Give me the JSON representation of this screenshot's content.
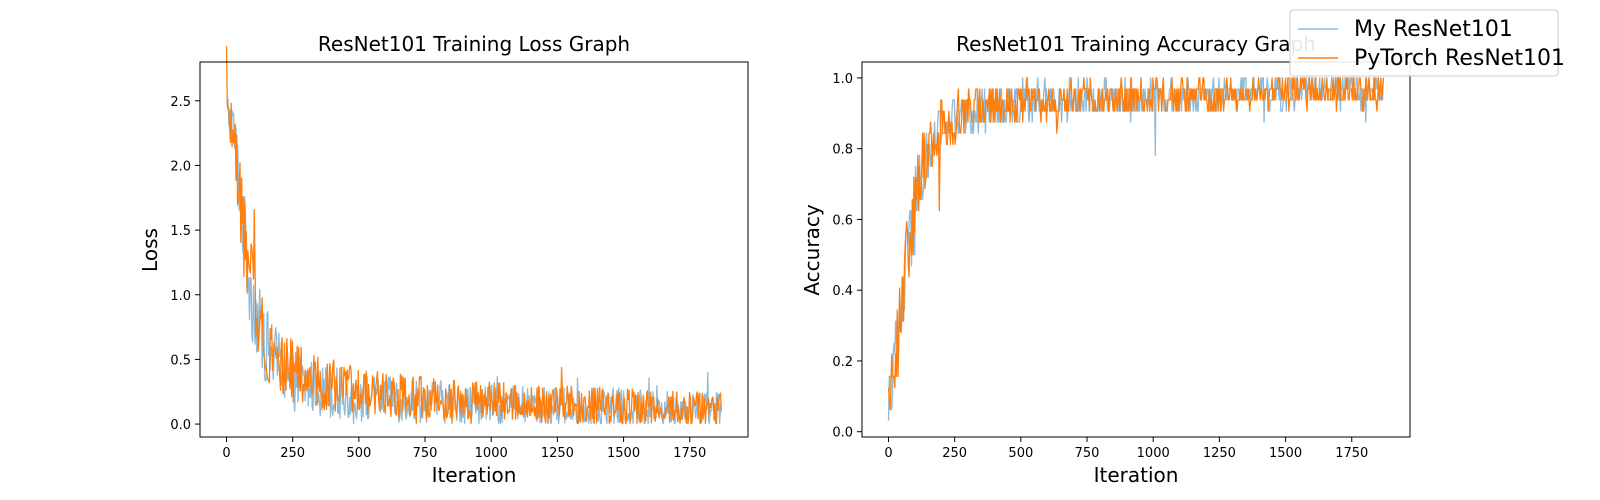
{
  "legend": {
    "placement": "top-right (figure)",
    "entries": [
      {
        "label": "My ResNet101",
        "color": "#1f77b4"
      },
      {
        "label": "PyTorch ResNet101",
        "color": "#ff7f0e"
      }
    ]
  },
  "chart_data": [
    {
      "type": "line",
      "title": "ResNet101 Training Loss Graph",
      "xlabel": "Iteration",
      "ylabel": "Loss",
      "xlim": [
        -100,
        1970
      ],
      "ylim": [
        -0.1,
        2.8
      ],
      "xticks": [
        0,
        250,
        500,
        750,
        1000,
        1250,
        1500,
        1750
      ],
      "xtick_labels": [
        "0",
        "250",
        "500",
        "750",
        "1000",
        "1250",
        "1500",
        "1750"
      ],
      "yticks": [
        0.0,
        0.5,
        1.0,
        1.5,
        2.0,
        2.5
      ],
      "ytick_labels": [
        "0.0",
        "0.5",
        "1.0",
        "1.5",
        "2.0",
        "2.5"
      ],
      "grid": false,
      "series": [
        {
          "name": "My ResNet101",
          "color": "#1f77b4",
          "opacity": 0.5,
          "x": [
            0,
            25,
            50,
            75,
            100,
            125,
            150,
            200,
            250,
            300,
            400,
            500,
            750,
            1000,
            1250,
            1500,
            1750,
            1870
          ],
          "y_mean": [
            2.45,
            2.3,
            1.85,
            1.3,
            0.95,
            0.75,
            0.6,
            0.45,
            0.35,
            0.3,
            0.25,
            0.2,
            0.18,
            0.15,
            0.14,
            0.13,
            0.12,
            0.12
          ],
          "y_spread": [
            0.15,
            0.2,
            0.3,
            0.35,
            0.35,
            0.3,
            0.3,
            0.28,
            0.25,
            0.22,
            0.2,
            0.18,
            0.17,
            0.15,
            0.15,
            0.15,
            0.14,
            0.14
          ]
        },
        {
          "name": "PyTorch ResNet101",
          "color": "#ff7f0e",
          "opacity": 1,
          "x": [
            0,
            25,
            50,
            75,
            100,
            125,
            150,
            200,
            250,
            300,
            400,
            500,
            750,
            1000,
            1250,
            1500,
            1750,
            1870
          ],
          "y_mean": [
            2.5,
            2.25,
            1.8,
            1.25,
            1.0,
            0.8,
            0.65,
            0.5,
            0.4,
            0.35,
            0.3,
            0.25,
            0.2,
            0.18,
            0.15,
            0.13,
            0.12,
            0.12
          ],
          "y_spread": [
            0.15,
            0.2,
            0.3,
            0.35,
            0.35,
            0.3,
            0.3,
            0.28,
            0.25,
            0.22,
            0.2,
            0.18,
            0.17,
            0.15,
            0.15,
            0.15,
            0.14,
            0.14
          ]
        }
      ]
    },
    {
      "type": "line",
      "title": "ResNet101 Training Accuracy Graph",
      "xlabel": "Iteration",
      "ylabel": "Accuracy",
      "xlim": [
        -100,
        1970
      ],
      "ylim": [
        -0.015,
        1.045
      ],
      "xticks": [
        0,
        250,
        500,
        750,
        1000,
        1250,
        1500,
        1750
      ],
      "xtick_labels": [
        "0",
        "250",
        "500",
        "750",
        "1000",
        "1250",
        "1500",
        "1750"
      ],
      "yticks": [
        0.0,
        0.2,
        0.4,
        0.6,
        0.8,
        1.0
      ],
      "ytick_labels": [
        "0.0",
        "0.2",
        "0.4",
        "0.6",
        "0.8",
        "1.0"
      ],
      "grid": false,
      "series": [
        {
          "name": "My ResNet101",
          "color": "#1f77b4",
          "opacity": 0.5,
          "x": [
            0,
            25,
            50,
            75,
            100,
            125,
            150,
            200,
            250,
            300,
            400,
            500,
            750,
            1000,
            1250,
            1500,
            1750,
            1870
          ],
          "y_mean": [
            0.08,
            0.2,
            0.35,
            0.5,
            0.62,
            0.72,
            0.78,
            0.85,
            0.88,
            0.9,
            0.92,
            0.93,
            0.94,
            0.95,
            0.95,
            0.96,
            0.96,
            0.96
          ],
          "y_spread": [
            0.05,
            0.1,
            0.12,
            0.12,
            0.12,
            0.1,
            0.09,
            0.08,
            0.07,
            0.06,
            0.06,
            0.05,
            0.05,
            0.05,
            0.04,
            0.04,
            0.04,
            0.04
          ]
        },
        {
          "name": "PyTorch ResNet101",
          "color": "#ff7f0e",
          "opacity": 1,
          "x": [
            0,
            25,
            50,
            75,
            100,
            125,
            150,
            200,
            250,
            300,
            400,
            500,
            750,
            1000,
            1250,
            1500,
            1750,
            1870
          ],
          "y_mean": [
            0.1,
            0.22,
            0.35,
            0.52,
            0.65,
            0.75,
            0.8,
            0.86,
            0.89,
            0.91,
            0.92,
            0.93,
            0.94,
            0.95,
            0.95,
            0.96,
            0.96,
            0.96
          ],
          "y_spread": [
            0.05,
            0.1,
            0.12,
            0.12,
            0.12,
            0.1,
            0.09,
            0.08,
            0.07,
            0.06,
            0.06,
            0.05,
            0.05,
            0.05,
            0.04,
            0.04,
            0.04,
            0.04
          ]
        }
      ]
    }
  ]
}
